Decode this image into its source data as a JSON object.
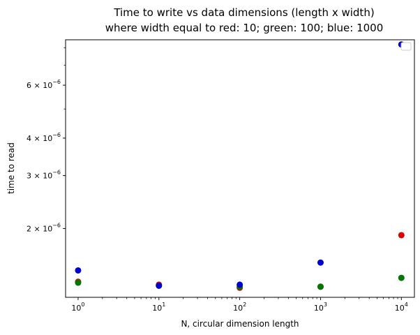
{
  "chart_data": {
    "type": "scatter",
    "title": [
      "Time to write vs data dimensions (length x width)",
      "where width equal to red: 10; green: 100; blue: 1000"
    ],
    "xlabel": "N, circular dimension length",
    "ylabel": "time to read",
    "x_scale": "log",
    "y_scale": "log",
    "xlim": [
      0.7,
      14500
    ],
    "ylim": [
      1.18e-06,
      8.5e-06
    ],
    "x_ticks": [
      {
        "value": 1,
        "mantissa": "10",
        "exponent": "0"
      },
      {
        "value": 10,
        "mantissa": "10",
        "exponent": "1"
      },
      {
        "value": 100,
        "mantissa": "10",
        "exponent": "2"
      },
      {
        "value": 1000,
        "mantissa": "10",
        "exponent": "3"
      },
      {
        "value": 10000,
        "mantissa": "10",
        "exponent": "4"
      }
    ],
    "y_ticks": [
      {
        "value": 2e-06,
        "mantissa": "2 × 10",
        "exponent": "−6"
      },
      {
        "value": 3e-06,
        "mantissa": "3 × 10",
        "exponent": "−6"
      },
      {
        "value": 4e-06,
        "mantissa": "4 × 10",
        "exponent": "−6"
      },
      {
        "value": 6e-06,
        "mantissa": "6 × 10",
        "exponent": "−6"
      }
    ],
    "legend": "top-right",
    "grid": false,
    "series": [
      {
        "color": "#dd0000",
        "x": [
          1,
          10,
          100,
          1000,
          10000
        ],
        "y": [
          1.33e-06,
          1.3e-06,
          1.27e-06,
          1.28e-06,
          1.9e-06
        ]
      },
      {
        "color": "#007700",
        "x": [
          1,
          10,
          100,
          1000,
          10000
        ],
        "y": [
          1.32e-06,
          1.29e-06,
          1.28e-06,
          1.28e-06,
          1.37e-06
        ]
      },
      {
        "color": "#0000cc",
        "x": [
          1,
          10,
          100,
          1000,
          10000
        ],
        "y": [
          1.45e-06,
          1.29e-06,
          1.3e-06,
          1.54e-06,
          8.2e-06
        ]
      }
    ]
  }
}
